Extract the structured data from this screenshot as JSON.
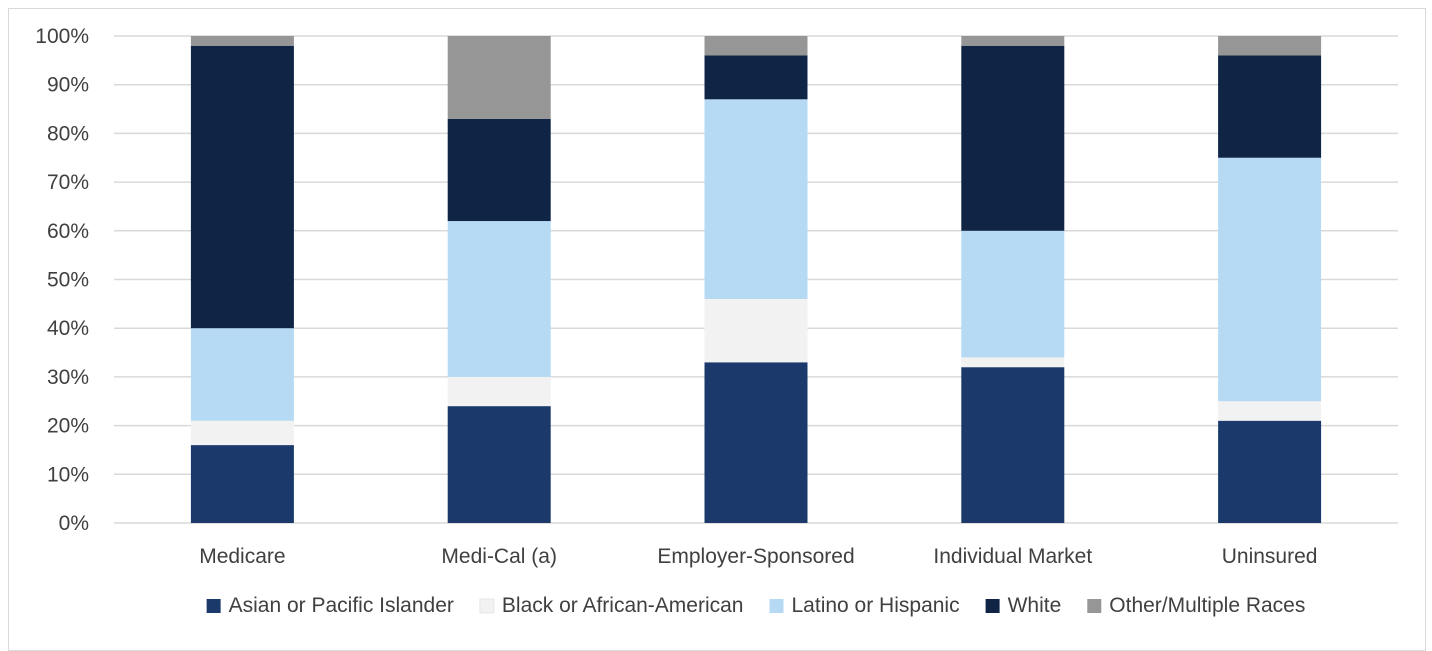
{
  "chart_data": {
    "type": "bar",
    "stacked": true,
    "title": "",
    "xlabel": "",
    "ylabel": "",
    "ylim": [
      0,
      100
    ],
    "y_ticks": [
      "0%",
      "10%",
      "20%",
      "30%",
      "40%",
      "50%",
      "60%",
      "70%",
      "80%",
      "90%",
      "100%"
    ],
    "grid": true,
    "legend_position": "bottom",
    "categories": [
      "Medicare",
      "Medi-Cal (a)",
      "Employer-Sponsored",
      "Individual Market",
      "Uninsured"
    ],
    "series": [
      {
        "name": "Asian or Pacific Islander",
        "color": "#1b3a6b",
        "values": [
          16,
          24,
          33,
          32,
          21
        ]
      },
      {
        "name": "Black or African-American",
        "color": "#f2f2f2",
        "values": [
          5,
          6,
          13,
          2,
          4
        ]
      },
      {
        "name": "Latino or Hispanic",
        "color": "#b6daf4",
        "values": [
          19,
          32,
          41,
          26,
          50
        ]
      },
      {
        "name": "White",
        "color": "#102545",
        "values": [
          58,
          21,
          9,
          38,
          21
        ]
      },
      {
        "name": "Other/Multiple Races",
        "color": "#969696",
        "values": [
          2,
          17,
          4,
          2,
          4
        ]
      }
    ]
  }
}
